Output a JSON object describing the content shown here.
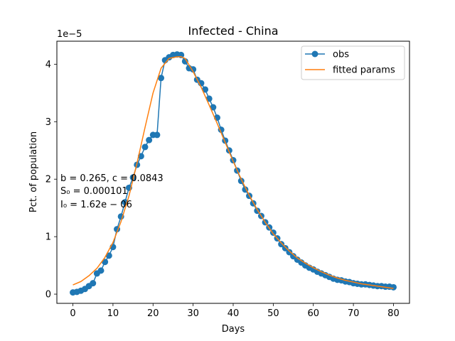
{
  "chart_data": {
    "type": "line",
    "title": "Infected - China",
    "xlabel": "Days",
    "ylabel": "Pct. of population",
    "y_multiplier_label": "1e−5",
    "xlim": [
      -4,
      84
    ],
    "ylim": [
      -0.16,
      4.4
    ],
    "xticks": [
      0,
      10,
      20,
      30,
      40,
      50,
      60,
      70,
      80
    ],
    "yticks": [
      0,
      1,
      2,
      3,
      4
    ],
    "legend_position": "top-right",
    "annotation": {
      "line1": "b = 0.265, c = 0.0843",
      "line2": "S₀ = 0.000101",
      "line3": "I₀ = 1.62e − 06"
    },
    "series": [
      {
        "name": "obs",
        "style": "line-with-markers",
        "color": "#1f77b4",
        "x": [
          0,
          1,
          2,
          3,
          4,
          5,
          6,
          7,
          8,
          9,
          10,
          11,
          12,
          13,
          14,
          15,
          16,
          17,
          18,
          19,
          20,
          21,
          22,
          23,
          24,
          25,
          26,
          27,
          28,
          29,
          30,
          31,
          32,
          33,
          34,
          35,
          36,
          37,
          38,
          39,
          40,
          41,
          42,
          43,
          44,
          45,
          46,
          47,
          48,
          49,
          50,
          51,
          52,
          53,
          54,
          55,
          56,
          57,
          58,
          59,
          60,
          61,
          62,
          63,
          64,
          65,
          66,
          67,
          68,
          69,
          70,
          71,
          72,
          73,
          74,
          75,
          76,
          77,
          78,
          79,
          80
        ],
        "y": [
          0.03,
          0.04,
          0.06,
          0.09,
          0.14,
          0.19,
          0.36,
          0.41,
          0.56,
          0.67,
          0.82,
          1.13,
          1.35,
          1.6,
          1.85,
          2.03,
          2.25,
          2.4,
          2.56,
          2.68,
          2.77,
          2.77,
          3.76,
          4.07,
          4.12,
          4.16,
          4.17,
          4.16,
          4.05,
          3.93,
          3.91,
          3.73,
          3.67,
          3.56,
          3.4,
          3.25,
          3.07,
          2.86,
          2.67,
          2.5,
          2.33,
          2.15,
          1.97,
          1.82,
          1.71,
          1.58,
          1.45,
          1.36,
          1.25,
          1.16,
          1.07,
          0.97,
          0.87,
          0.8,
          0.73,
          0.66,
          0.6,
          0.55,
          0.5,
          0.46,
          0.43,
          0.39,
          0.36,
          0.33,
          0.3,
          0.27,
          0.25,
          0.24,
          0.22,
          0.21,
          0.19,
          0.18,
          0.17,
          0.17,
          0.16,
          0.15,
          0.14,
          0.14,
          0.13,
          0.13,
          0.12
        ]
      },
      {
        "name": "fitted params",
        "style": "line",
        "color": "#ff7f0e",
        "x": [
          0,
          2,
          4,
          6,
          8,
          10,
          12,
          14,
          16,
          18,
          20,
          22,
          24,
          26,
          27,
          28,
          30,
          32,
          34,
          36,
          38,
          40,
          42,
          44,
          46,
          48,
          50,
          52,
          54,
          56,
          58,
          60,
          62,
          64,
          66,
          68,
          70,
          72,
          74,
          76,
          78,
          80
        ],
        "y": [
          0.16,
          0.22,
          0.32,
          0.45,
          0.64,
          0.9,
          1.26,
          1.71,
          2.28,
          2.9,
          3.5,
          3.93,
          4.1,
          4.13,
          4.13,
          4.1,
          3.87,
          3.6,
          3.29,
          2.97,
          2.64,
          2.31,
          2.0,
          1.72,
          1.47,
          1.25,
          1.05,
          0.89,
          0.75,
          0.63,
          0.54,
          0.46,
          0.39,
          0.33,
          0.28,
          0.24,
          0.21,
          0.18,
          0.16,
          0.14,
          0.12,
          0.1
        ]
      }
    ]
  }
}
